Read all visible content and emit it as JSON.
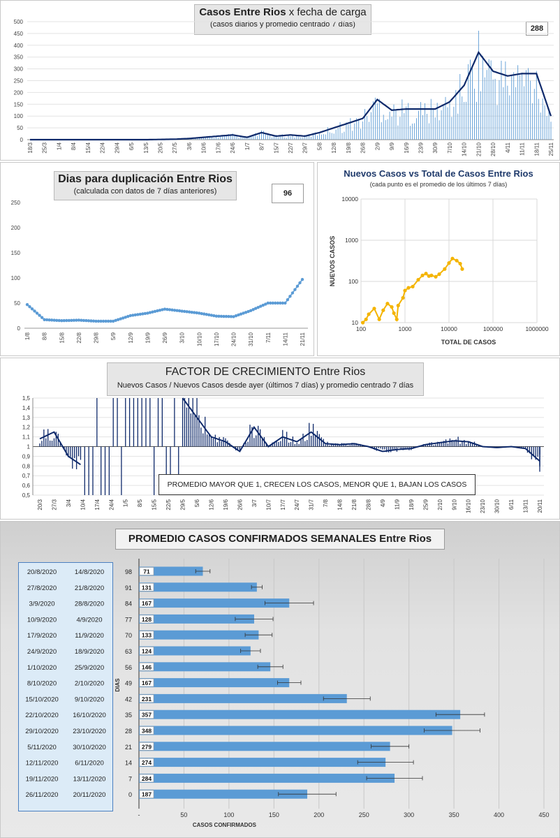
{
  "panel1": {
    "title_bold": "Casos  Entre Rios",
    "title_rest": " x fecha de carga",
    "subtitle": "(casos diarios y promedio  centrado 7 días)",
    "value_box": "288",
    "y_ticks": [
      "0",
      "50",
      "100",
      "150",
      "200",
      "250",
      "300",
      "350",
      "400",
      "450",
      "500"
    ],
    "x_ticks": [
      "18/3",
      "25/3",
      "1/4",
      "8/4",
      "15/4",
      "22/4",
      "29/4",
      "6/5",
      "13/5",
      "20/5",
      "27/5",
      "3/6",
      "10/6",
      "17/6",
      "24/6",
      "1/7",
      "8/7",
      "15/7",
      "22/7",
      "29/7",
      "5/8",
      "12/8",
      "19/8",
      "26/8",
      "2/9",
      "9/9",
      "16/9",
      "23/9",
      "30/9",
      "7/10",
      "14/10",
      "21/10",
      "28/10",
      "4/11",
      "11/11",
      "18/11",
      "25/11"
    ]
  },
  "panel2": {
    "title": "Dias para duplicación Entre Rios",
    "subtitle": "(calculada con datos de 7 días anteriores)",
    "value_box": "96",
    "y_ticks": [
      "0",
      "50",
      "100",
      "150",
      "200",
      "250"
    ],
    "x_ticks": [
      "1/8",
      "8/8",
      "15/8",
      "22/8",
      "29/8",
      "5/9",
      "12/9",
      "19/9",
      "26/9",
      "3/10",
      "10/10",
      "17/10",
      "24/10",
      "31/10",
      "7/11",
      "14/11",
      "21/11"
    ]
  },
  "panel3": {
    "title": "Nuevos Casos vs Total de Casos Entre Rios",
    "subtitle": "(cada punto es el promedio de los últimos 7 días)",
    "ylabel": "NUEVOS  CASOS",
    "xlabel": "TOTAL DE CASOS",
    "y_ticks": [
      "10",
      "100",
      "1000",
      "10000"
    ],
    "x_ticks": [
      "100",
      "1000",
      "10000",
      "100000",
      "1000000"
    ]
  },
  "panel4": {
    "title_main": "FACTOR DE CRECIMIENTO",
    "title_rest": " Entre Rios",
    "subtitle": "Nuevos Casos  / Nuevos Casos desde ayer (últimos 7 días) y promedio  centrado 7 días",
    "note": "PROMEDIO MAYOR QUE 1, CRECEN LOS CASOS, MENOR QUE 1, BAJAN LOS CASOS",
    "y_ticks": [
      "0,5",
      "0,6",
      "0,7",
      "0,8",
      "0,9",
      "1",
      "1,1",
      "1,2",
      "1,3",
      "1,4",
      "1,5"
    ],
    "x_ticks": [
      "20/3",
      "27/3",
      "3/4",
      "10/4",
      "17/4",
      "24/4",
      "1/5",
      "8/5",
      "15/5",
      "22/5",
      "29/5",
      "5/6",
      "12/6",
      "19/6",
      "26/6",
      "3/7",
      "10/7",
      "17/7",
      "24/7",
      "31/7",
      "7/8",
      "14/8",
      "21/8",
      "28/8",
      "4/9",
      "11/9",
      "18/9",
      "25/9",
      "2/10",
      "9/10",
      "16/10",
      "23/10",
      "30/10",
      "6/11",
      "13/11",
      "20/11"
    ]
  },
  "panel5": {
    "title": "PROMEDIO CASOS CONFIRMADOS SEMANALES Entre Rios",
    "xlabel": "CASOS CONFIRMADOS",
    "ylabel": "DIAS",
    "x_ticks": [
      "-",
      "50",
      "100",
      "150",
      "200",
      "250",
      "300",
      "350",
      "400",
      "450"
    ]
  },
  "colors": {
    "navy": "#0f2a6b",
    "bar_light": "#5b9bd5",
    "dots": "#f4b400",
    "scatter_line": "#5b9bd5"
  },
  "chart_data": [
    {
      "type": "bar",
      "title": "Casos  Entre Rios x fecha de carga",
      "subtitle": "(casos diarios y promedio  centrado 7 días)",
      "ylim": [
        0,
        500
      ],
      "x_range": [
        "18/3",
        "28/11"
      ],
      "series": [
        {
          "type": "line",
          "values_at_ticks": [
            0,
            0,
            0,
            0,
            0,
            0,
            0,
            0,
            0,
            1,
            2,
            5,
            10,
            15,
            20,
            10,
            30,
            15,
            20,
            15,
            30,
            50,
            70,
            90,
            170,
            125,
            130,
            130,
            130,
            160,
            230,
            370,
            290,
            270,
            280,
            280,
            100
          ]
        }
      ]
    },
    {
      "type": "line",
      "title": "Dias para duplicación Entre Rios",
      "ylim": [
        0,
        250
      ],
      "categories": [
        "1/8",
        "8/8",
        "15/8",
        "22/8",
        "29/8",
        "5/9",
        "12/9",
        "19/9",
        "26/9",
        "3/10",
        "10/10",
        "17/10",
        "24/10",
        "31/10",
        "7/11",
        "14/11",
        "21/11"
      ],
      "values": [
        47,
        17,
        15,
        16,
        14,
        14,
        25,
        30,
        38,
        34,
        30,
        24,
        23,
        35,
        50,
        50,
        97
      ]
    },
    {
      "type": "scatter",
      "title": "Nuevos Casos vs Total de Casos Entre Rios",
      "x_scale": "log",
      "y_scale": "log",
      "xlim": [
        100,
        1000000
      ],
      "ylim": [
        10,
        10000
      ],
      "points": [
        [
          110,
          10
        ],
        [
          130,
          12
        ],
        [
          150,
          16
        ],
        [
          200,
          22
        ],
        [
          260,
          12
        ],
        [
          320,
          20
        ],
        [
          400,
          29
        ],
        [
          500,
          24
        ],
        [
          560,
          17
        ],
        [
          650,
          12
        ],
        [
          700,
          26
        ],
        [
          900,
          40
        ],
        [
          1000,
          60
        ],
        [
          1200,
          70
        ],
        [
          1500,
          75
        ],
        [
          2000,
          110
        ],
        [
          2500,
          140
        ],
        [
          3000,
          155
        ],
        [
          3500,
          135
        ],
        [
          4000,
          140
        ],
        [
          5000,
          130
        ],
        [
          6000,
          150
        ],
        [
          8000,
          200
        ],
        [
          10000,
          280
        ],
        [
          12000,
          360
        ],
        [
          15000,
          320
        ],
        [
          18000,
          270
        ],
        [
          20000,
          200
        ]
      ]
    },
    {
      "type": "bar",
      "title": "FACTOR DE CRECIMIENTO Entre Rios",
      "ylim": [
        0.5,
        1.5
      ],
      "baseline": 1,
      "x_range": [
        "20/3",
        "24/11"
      ],
      "series": [
        {
          "type": "line",
          "values_at_ticks": [
            1.08,
            1.15,
            0.9,
            0.8,
            null,
            null,
            null,
            null,
            null,
            null,
            1.5,
            1.3,
            1.1,
            1.05,
            0.95,
            1.2,
            1.0,
            1.1,
            1.05,
            1.15,
            1.03,
            1.02,
            1.03,
            1.0,
            0.95,
            0.97,
            0.98,
            1.02,
            1.04,
            1.06,
            1.05,
            1.0,
            0.99,
            1.0,
            0.98,
            0.85
          ]
        }
      ]
    },
    {
      "type": "bar",
      "orientation": "horizontal",
      "title": "PROMEDIO CASOS CONFIRMADOS SEMANALES Entre Rios",
      "xlabel": "CASOS CONFIRMADOS",
      "ylabel": "DIAS",
      "xlim": [
        0,
        450
      ],
      "rows": [
        {
          "date_end": "20/8/2020",
          "date_start": "14/8/2020",
          "days": "98",
          "value": 71,
          "err": 8
        },
        {
          "date_end": "27/8/2020",
          "date_start": "21/8/2020",
          "days": "91",
          "value": 131,
          "err": 6
        },
        {
          "date_end": "3/9/2020",
          "date_start": "28/8/2020",
          "days": "84",
          "value": 167,
          "err": 27
        },
        {
          "date_end": "10/9/2020",
          "date_start": "4/9/2020",
          "days": "77",
          "value": 128,
          "err": 21
        },
        {
          "date_end": "17/9/2020",
          "date_start": "11/9/2020",
          "days": "70",
          "value": 133,
          "err": 15
        },
        {
          "date_end": "24/9/2020",
          "date_start": "18/9/2020",
          "days": "63",
          "value": 124,
          "err": 11
        },
        {
          "date_end": "1/10/2020",
          "date_start": "25/9/2020",
          "days": "56",
          "value": 146,
          "err": 14
        },
        {
          "date_end": "8/10/2020",
          "date_start": "2/10/2020",
          "days": "49",
          "value": 167,
          "err": 13
        },
        {
          "date_end": "15/10/2020",
          "date_start": "9/10/2020",
          "days": "42",
          "value": 231,
          "err": 26
        },
        {
          "date_end": "22/10/2020",
          "date_start": "16/10/2020",
          "days": "35",
          "value": 357,
          "err": 27
        },
        {
          "date_end": "29/10/2020",
          "date_start": "23/10/2020",
          "days": "28",
          "value": 348,
          "err": 31
        },
        {
          "date_end": "5/11/2020",
          "date_start": "30/10/2020",
          "days": "21",
          "value": 279,
          "err": 21
        },
        {
          "date_end": "12/11/2020",
          "date_start": "6/11/2020",
          "days": "14",
          "value": 274,
          "err": 31
        },
        {
          "date_end": "19/11/2020",
          "date_start": "13/11/2020",
          "days": "7",
          "value": 284,
          "err": 31
        },
        {
          "date_end": "26/11/2020",
          "date_start": "20/11/2020",
          "days": "0",
          "value": 187,
          "err": 32
        }
      ]
    }
  ]
}
